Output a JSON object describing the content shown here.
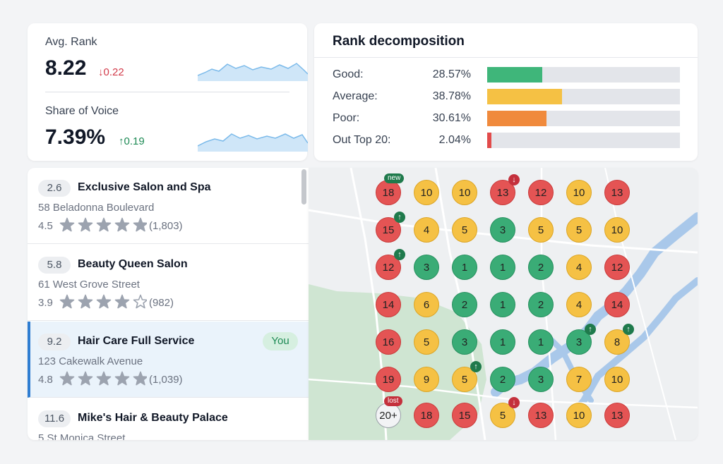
{
  "metrics": {
    "avg_rank": {
      "label": "Avg. Rank",
      "value": "8.22",
      "delta": "↓0.22",
      "direction": "down"
    },
    "share_of_voice": {
      "label": "Share of Voice",
      "value": "7.39%",
      "delta": "↑0.19",
      "direction": "up"
    }
  },
  "decomposition": {
    "title": "Rank decomposition",
    "rows": [
      {
        "label": "Good:",
        "value": "28.57%",
        "fraction": 0.2857,
        "color": "#3fb67a"
      },
      {
        "label": "Average:",
        "value": "38.78%",
        "fraction": 0.3878,
        "color": "#f5c144"
      },
      {
        "label": "Poor:",
        "value": "30.61%",
        "fraction": 0.3061,
        "color": "#f08a3c"
      },
      {
        "label": "Out Top 20:",
        "value": "2.04%",
        "fraction": 0.0204,
        "color": "#e24b4b"
      }
    ]
  },
  "businesses": [
    {
      "rank": "2.6",
      "name": "Exclusive Salon and Spa",
      "address": "58 Beladonna Boulevard",
      "rating": "4.5",
      "stars": 4.5,
      "reviews": "(1,803)",
      "selected": false,
      "badge": ""
    },
    {
      "rank": "5.8",
      "name": "Beauty Queen Salon",
      "address": "61 West Grove Street",
      "rating": "3.9",
      "stars": 3.9,
      "reviews": "(982)",
      "selected": false,
      "badge": ""
    },
    {
      "rank": "9.2",
      "name": "Hair Care Full Service",
      "address": "123 Cakewalk Avenue",
      "rating": "4.8",
      "stars": 4.8,
      "reviews": "(1,039)",
      "selected": true,
      "badge": "You"
    },
    {
      "rank": "11.6",
      "name": "Mike's Hair & Beauty Palace",
      "address": "5 St Monica Street",
      "rating": "",
      "stars": 0,
      "reviews": "",
      "selected": false,
      "badge": ""
    }
  ],
  "grid": {
    "rows": [
      [
        "18",
        "10",
        "10",
        "13",
        "12",
        "10",
        "13"
      ],
      [
        "15",
        "4",
        "5",
        "3",
        "5",
        "5",
        "10"
      ],
      [
        "12",
        "3",
        "1",
        "1",
        "2",
        "4",
        "12"
      ],
      [
        "14",
        "6",
        "2",
        "1",
        "2",
        "4",
        "14"
      ],
      [
        "16",
        "5",
        "3",
        "1",
        "1",
        "3",
        "8"
      ],
      [
        "19",
        "9",
        "5",
        "2",
        "3",
        "7",
        "10"
      ],
      [
        "20+",
        "18",
        "15",
        "5",
        "13",
        "10",
        "13"
      ]
    ],
    "colors": [
      [
        "red",
        "yellow",
        "yellow",
        "red",
        "red",
        "yellow",
        "red"
      ],
      [
        "red",
        "yellow",
        "yellow",
        "green",
        "yellow",
        "yellow",
        "yellow"
      ],
      [
        "red",
        "green",
        "green",
        "green",
        "green",
        "yellow",
        "red"
      ],
      [
        "red",
        "yellow",
        "green",
        "green",
        "green",
        "yellow",
        "red"
      ],
      [
        "red",
        "yellow",
        "green",
        "green",
        "green",
        "green",
        "yellow"
      ],
      [
        "red",
        "yellow",
        "yellow",
        "green",
        "green",
        "yellow",
        "yellow"
      ],
      [
        "grey",
        "red",
        "red",
        "yellow",
        "red",
        "yellow",
        "red"
      ]
    ],
    "markers": [
      {
        "row": 0,
        "col": 0,
        "type": "tag",
        "text": "new"
      },
      {
        "row": 0,
        "col": 3,
        "type": "arrow",
        "text": "↓"
      },
      {
        "row": 1,
        "col": 0,
        "type": "arrow",
        "text": "↑"
      },
      {
        "row": 2,
        "col": 0,
        "type": "arrow",
        "text": "↑"
      },
      {
        "row": 4,
        "col": 5,
        "type": "arrow",
        "text": "↑"
      },
      {
        "row": 4,
        "col": 6,
        "type": "arrow",
        "text": "↑"
      },
      {
        "row": 5,
        "col": 2,
        "type": "arrow",
        "text": "↑"
      },
      {
        "row": 6,
        "col": 0,
        "type": "tag",
        "text": "lost"
      },
      {
        "row": 6,
        "col": 3,
        "type": "arrow",
        "text": "↓"
      }
    ]
  }
}
